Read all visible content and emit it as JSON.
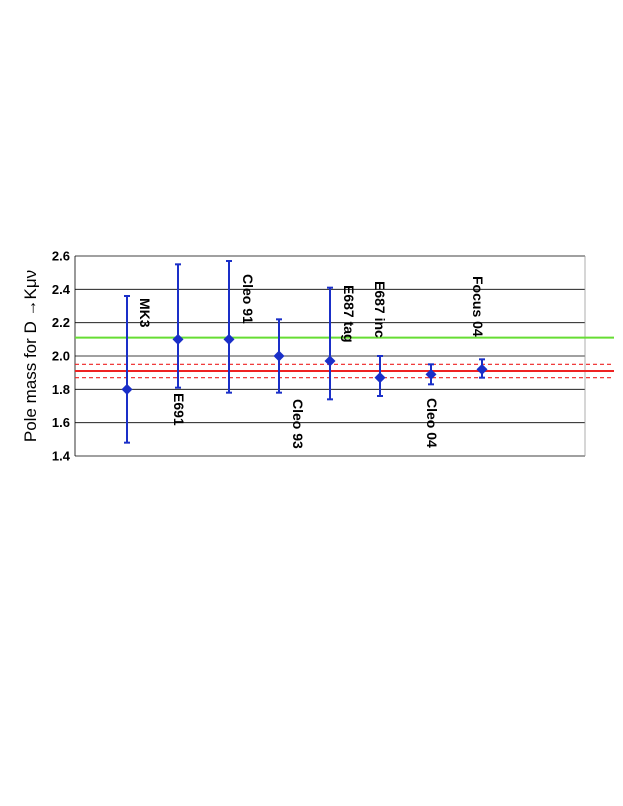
{
  "chart_data": {
    "type": "scatter",
    "ylabel": "Pole mass for D →Kμν",
    "ylim": [
      1.4,
      2.6
    ],
    "ytick_labels": [
      "2.6",
      "2.4",
      "2.2",
      "2.0",
      "1.8",
      "1.6",
      "1.4"
    ],
    "yticks": [
      2.6,
      2.4,
      2.2,
      2.0,
      1.8,
      1.6,
      1.4
    ],
    "grid": "horizontal",
    "points": [
      {
        "label": "MK3",
        "value": 1.8,
        "err_low": 1.48,
        "err_high": 2.36
      },
      {
        "label": "E691",
        "value": 2.1,
        "err_low": 1.81,
        "err_high": 2.55
      },
      {
        "label": "Cleo 91",
        "value": 2.1,
        "err_low": 1.78,
        "err_high": 2.57
      },
      {
        "label": "Cleo 93",
        "value": 2.0,
        "err_low": 1.78,
        "err_high": 2.22
      },
      {
        "label": "E687 tag",
        "value": 1.97,
        "err_low": 1.74,
        "err_high": 2.41
      },
      {
        "label": "E687 inc",
        "value": 1.87,
        "err_low": 1.76,
        "err_high": 2.0
      },
      {
        "label": "Cleo 04",
        "value": 1.89,
        "err_low": 1.83,
        "err_high": 1.95
      },
      {
        "label": "Focus 04",
        "value": 1.92,
        "err_low": 1.87,
        "err_high": 1.98
      }
    ],
    "reference_lines": [
      {
        "value": 2.11,
        "color": "#66dd33",
        "style": "solid"
      },
      {
        "value": 1.91,
        "color": "#ee2222",
        "style": "solid"
      },
      {
        "value": 1.95,
        "color": "#ee2222",
        "style": "dashed"
      },
      {
        "value": 1.87,
        "color": "#ee2222",
        "style": "dashed"
      }
    ],
    "colors": {
      "points": "#1a2fc8",
      "grid": "#000000"
    }
  }
}
